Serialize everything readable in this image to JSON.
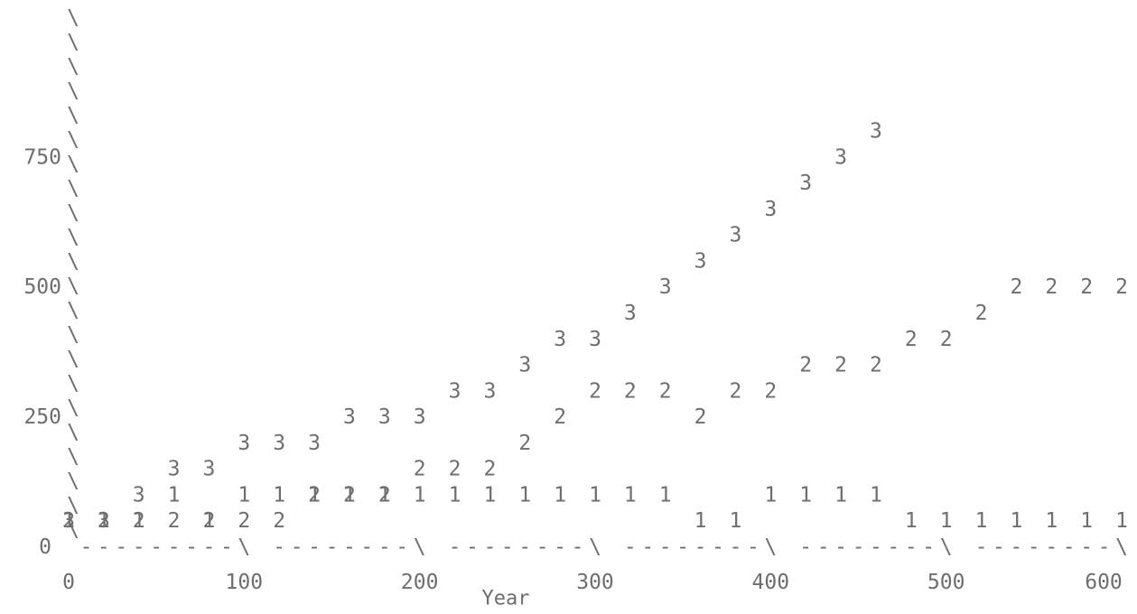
{
  "chart_data": {
    "type": "scatter",
    "style": "ascii-plot",
    "xlabel": "Year",
    "ylabel": "",
    "xlim": [
      0,
      600
    ],
    "ylim": [
      0,
      900
    ],
    "x_ticks": [
      "0",
      "100",
      "200",
      "300",
      "400",
      "500",
      "600"
    ],
    "y_ticks": [
      "250",
      "500",
      "750"
    ],
    "y_zero_label": "0",
    "grid": false,
    "colors": {
      "marks": "#6e6e6e",
      "axis": "#6e6e6e"
    },
    "series": [
      {
        "name": "1",
        "x": [
          0,
          20,
          40,
          60,
          80,
          100,
          120,
          140,
          160,
          180,
          200,
          220,
          240,
          260,
          280,
          300,
          320,
          340,
          360,
          380,
          400,
          420,
          440,
          460,
          480,
          500,
          520,
          540,
          560,
          580,
          600
        ],
        "y": [
          50,
          50,
          50,
          100,
          50,
          100,
          100,
          100,
          100,
          100,
          100,
          100,
          100,
          100,
          100,
          100,
          100,
          100,
          50,
          50,
          100,
          100,
          100,
          100,
          50,
          50,
          50,
          50,
          50,
          50,
          50
        ]
      },
      {
        "name": "2",
        "x": [
          0,
          20,
          40,
          60,
          80,
          100,
          120,
          140,
          160,
          180,
          200,
          220,
          240,
          260,
          280,
          300,
          320,
          340,
          360,
          380,
          400,
          420,
          440,
          460,
          480,
          500,
          520,
          540,
          560,
          580,
          600
        ],
        "y": [
          50,
          50,
          50,
          50,
          50,
          50,
          50,
          100,
          100,
          100,
          150,
          150,
          150,
          200,
          250,
          300,
          300,
          300,
          250,
          300,
          300,
          350,
          350,
          350,
          400,
          400,
          450,
          500,
          500,
          500,
          500
        ]
      },
      {
        "name": "3",
        "x": [
          0,
          20,
          40,
          60,
          80,
          100,
          120,
          140,
          160,
          180,
          200,
          220,
          240,
          260,
          280,
          300,
          320,
          340,
          360,
          380,
          400,
          420,
          440,
          460
        ],
        "y": [
          50,
          50,
          100,
          150,
          150,
          200,
          200,
          200,
          250,
          250,
          250,
          300,
          300,
          350,
          400,
          400,
          450,
          500,
          550,
          600,
          650,
          700,
          750,
          800
        ]
      }
    ]
  }
}
